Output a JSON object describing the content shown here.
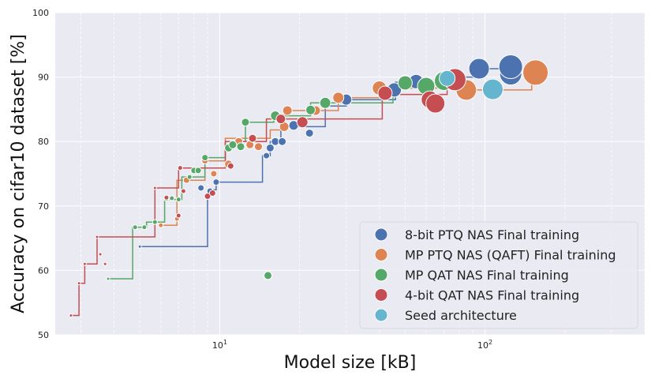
{
  "chart_data": {
    "type": "scatter",
    "title": "",
    "xlabel": "Model size [kB]",
    "ylabel": "Accuracy on cifar10 dataset [%]",
    "xscale": "log",
    "xlim": [
      2.4,
      400
    ],
    "ylim": [
      50,
      100
    ],
    "x_ticks": [
      {
        "value": 10,
        "base": "10",
        "exp": "1"
      },
      {
        "value": 100,
        "base": "10",
        "exp": "2"
      }
    ],
    "y_ticks": [
      50,
      60,
      70,
      80,
      90,
      100
    ],
    "grid": true,
    "legend_position": "bottom-right",
    "series": [
      {
        "name": "8-bit PTQ NAS Final training",
        "color": "#4c72b0",
        "frontier": [
          [
            5.0,
            63.7
          ],
          [
            9.0,
            63.7
          ],
          [
            9.0,
            72.5
          ],
          [
            9.7,
            72.5
          ],
          [
            9.7,
            73.7
          ],
          [
            14.5,
            73.7
          ],
          [
            14.5,
            77.8
          ],
          [
            15.5,
            77.8
          ],
          [
            15.5,
            80.0
          ],
          [
            17.0,
            80.0
          ],
          [
            17.0,
            82.3
          ],
          [
            25.0,
            82.3
          ],
          [
            25.0,
            85.5
          ],
          [
            30.0,
            85.5
          ],
          [
            30.0,
            86.5
          ],
          [
            46.0,
            86.5
          ],
          [
            46.0,
            89.2
          ],
          [
            72.0,
            89.2
          ],
          [
            72.0,
            90.0
          ],
          [
            95.0,
            90.0
          ],
          [
            95.0,
            91.3
          ],
          [
            125.0,
            91.3
          ],
          [
            125.0,
            91.6
          ]
        ],
        "points": [
          [
            5.0,
            63.7,
            2
          ],
          [
            8.5,
            72.8,
            4
          ],
          [
            9.2,
            72.3,
            4
          ],
          [
            9.7,
            73.7,
            4
          ],
          [
            15.0,
            77.8,
            4
          ],
          [
            15.5,
            79.0,
            5
          ],
          [
            16.2,
            80.0,
            5
          ],
          [
            17.2,
            80.0,
            5
          ],
          [
            19.0,
            82.5,
            6
          ],
          [
            21.8,
            81.3,
            5
          ],
          [
            30.0,
            86.5,
            7
          ],
          [
            45.5,
            88.0,
            9
          ],
          [
            50.0,
            89.2,
            9
          ],
          [
            55.0,
            89.3,
            9
          ],
          [
            72.0,
            89.5,
            11
          ],
          [
            95.0,
            91.3,
            13
          ],
          [
            125.0,
            90.5,
            14
          ],
          [
            125.0,
            91.6,
            15
          ]
        ]
      },
      {
        "name": "MP PTQ NAS (QAFT) Final training",
        "color": "#dd8452",
        "frontier": [
          [
            6.0,
            67.0
          ],
          [
            6.9,
            67.0
          ],
          [
            6.9,
            74.0
          ],
          [
            8.8,
            74.0
          ],
          [
            8.8,
            77.0
          ],
          [
            10.5,
            77.0
          ],
          [
            10.5,
            80.5
          ],
          [
            15.5,
            80.5
          ],
          [
            15.5,
            81.8
          ],
          [
            17.5,
            81.8
          ],
          [
            17.5,
            84.8
          ],
          [
            28.0,
            84.8
          ],
          [
            28.0,
            86.8
          ],
          [
            40.0,
            86.8
          ],
          [
            40.0,
            88.3
          ],
          [
            80.0,
            88.3
          ],
          [
            80.0,
            88.0
          ],
          [
            150.0,
            88.0
          ],
          [
            150.0,
            90.7
          ]
        ],
        "points": [
          [
            6.0,
            67.0,
            3
          ],
          [
            6.9,
            68.0,
            3
          ],
          [
            7.5,
            74.0,
            4
          ],
          [
            8.8,
            77.0,
            4
          ],
          [
            9.5,
            75.0,
            4
          ],
          [
            10.8,
            76.5,
            5
          ],
          [
            11.8,
            80.0,
            5
          ],
          [
            13.0,
            79.5,
            5
          ],
          [
            14.0,
            79.2,
            5
          ],
          [
            17.5,
            82.3,
            6
          ],
          [
            18.0,
            84.8,
            6
          ],
          [
            23.0,
            84.8,
            6
          ],
          [
            28.0,
            86.8,
            7
          ],
          [
            40.0,
            88.3,
            9
          ],
          [
            85.0,
            88.0,
            13
          ],
          [
            155.0,
            90.7,
            16
          ]
        ]
      },
      {
        "name": "MP QAT NAS Final training",
        "color": "#55a868",
        "frontier": [
          [
            3.8,
            58.7
          ],
          [
            4.7,
            58.7
          ],
          [
            4.7,
            66.7
          ],
          [
            5.3,
            66.7
          ],
          [
            5.3,
            67.5
          ],
          [
            6.2,
            67.5
          ],
          [
            6.2,
            71.0
          ],
          [
            7.2,
            71.0
          ],
          [
            7.2,
            74.5
          ],
          [
            8.8,
            74.5
          ],
          [
            8.8,
            77.5
          ],
          [
            10.5,
            77.5
          ],
          [
            10.5,
            80.0
          ],
          [
            12.5,
            80.0
          ],
          [
            12.5,
            83.0
          ],
          [
            16.0,
            83.0
          ],
          [
            16.0,
            84.0
          ],
          [
            22.0,
            84.0
          ],
          [
            22.0,
            86.0
          ],
          [
            45.0,
            86.0
          ],
          [
            45.0,
            88.5
          ],
          [
            55.0,
            88.5
          ],
          [
            55.0,
            89.2
          ],
          [
            70.0,
            89.2
          ]
        ],
        "points": [
          [
            3.8,
            58.7,
            2
          ],
          [
            4.8,
            66.7,
            3
          ],
          [
            5.2,
            66.7,
            3
          ],
          [
            5.7,
            67.5,
            3
          ],
          [
            6.3,
            71.1,
            3
          ],
          [
            6.6,
            71.2,
            3
          ],
          [
            7.0,
            71.0,
            3
          ],
          [
            7.7,
            74.5,
            3
          ],
          [
            8.0,
            75.5,
            4
          ],
          [
            8.3,
            75.5,
            4
          ],
          [
            8.8,
            77.5,
            4
          ],
          [
            10.8,
            79.0,
            5
          ],
          [
            11.2,
            79.5,
            5
          ],
          [
            12.0,
            79.2,
            5
          ],
          [
            12.5,
            83.0,
            5
          ],
          [
            15.2,
            59.2,
            5
          ],
          [
            16.2,
            84.0,
            6
          ],
          [
            22.0,
            84.9,
            6
          ],
          [
            25.0,
            86.0,
            7
          ],
          [
            50.0,
            89.1,
            9
          ],
          [
            60.0,
            88.6,
            11
          ],
          [
            70.0,
            89.4,
            12
          ]
        ],
        "outlier": true
      },
      {
        "name": "4-bit QAT NAS Final training",
        "color": "#c44e52",
        "frontier": [
          [
            2.75,
            53.0
          ],
          [
            2.95,
            53.0
          ],
          [
            2.95,
            58.0
          ],
          [
            3.1,
            58.0
          ],
          [
            3.1,
            61.0
          ],
          [
            3.45,
            61.0
          ],
          [
            3.45,
            65.2
          ],
          [
            5.7,
            65.2
          ],
          [
            5.7,
            72.8
          ],
          [
            7.0,
            72.8
          ],
          [
            7.0,
            75.9
          ],
          [
            10.5,
            75.9
          ],
          [
            10.5,
            80.0
          ],
          [
            15.0,
            80.0
          ],
          [
            15.0,
            83.5
          ],
          [
            41.0,
            83.5
          ],
          [
            41.0,
            87.3
          ],
          [
            72.0,
            87.3
          ],
          [
            72.0,
            89.6
          ],
          [
            77.0,
            89.6
          ]
        ],
        "points": [
          [
            2.75,
            53.0,
            2
          ],
          [
            2.95,
            58.0,
            2
          ],
          [
            3.1,
            61.0,
            2
          ],
          [
            3.45,
            65.2,
            2
          ],
          [
            3.55,
            62.5,
            2
          ],
          [
            3.7,
            61.0,
            2
          ],
          [
            5.7,
            72.8,
            2
          ],
          [
            6.3,
            71.3,
            3
          ],
          [
            7.0,
            68.5,
            3
          ],
          [
            7.1,
            75.9,
            3
          ],
          [
            7.3,
            72.3,
            3
          ],
          [
            9.0,
            71.5,
            4
          ],
          [
            9.4,
            72.0,
            4
          ],
          [
            11.0,
            76.2,
            4
          ],
          [
            13.3,
            80.5,
            5
          ],
          [
            17.0,
            83.5,
            6
          ],
          [
            20.5,
            83.0,
            7
          ],
          [
            42.0,
            87.5,
            9
          ],
          [
            62.0,
            86.5,
            11
          ],
          [
            65.0,
            85.9,
            12
          ],
          [
            77.0,
            89.6,
            14
          ]
        ]
      },
      {
        "name": "Seed architecture",
        "color": "#64b5cd",
        "frontier": [],
        "points": [
          [
            72.0,
            89.8,
            10
          ],
          [
            107.0,
            88.1,
            13
          ]
        ]
      }
    ]
  }
}
